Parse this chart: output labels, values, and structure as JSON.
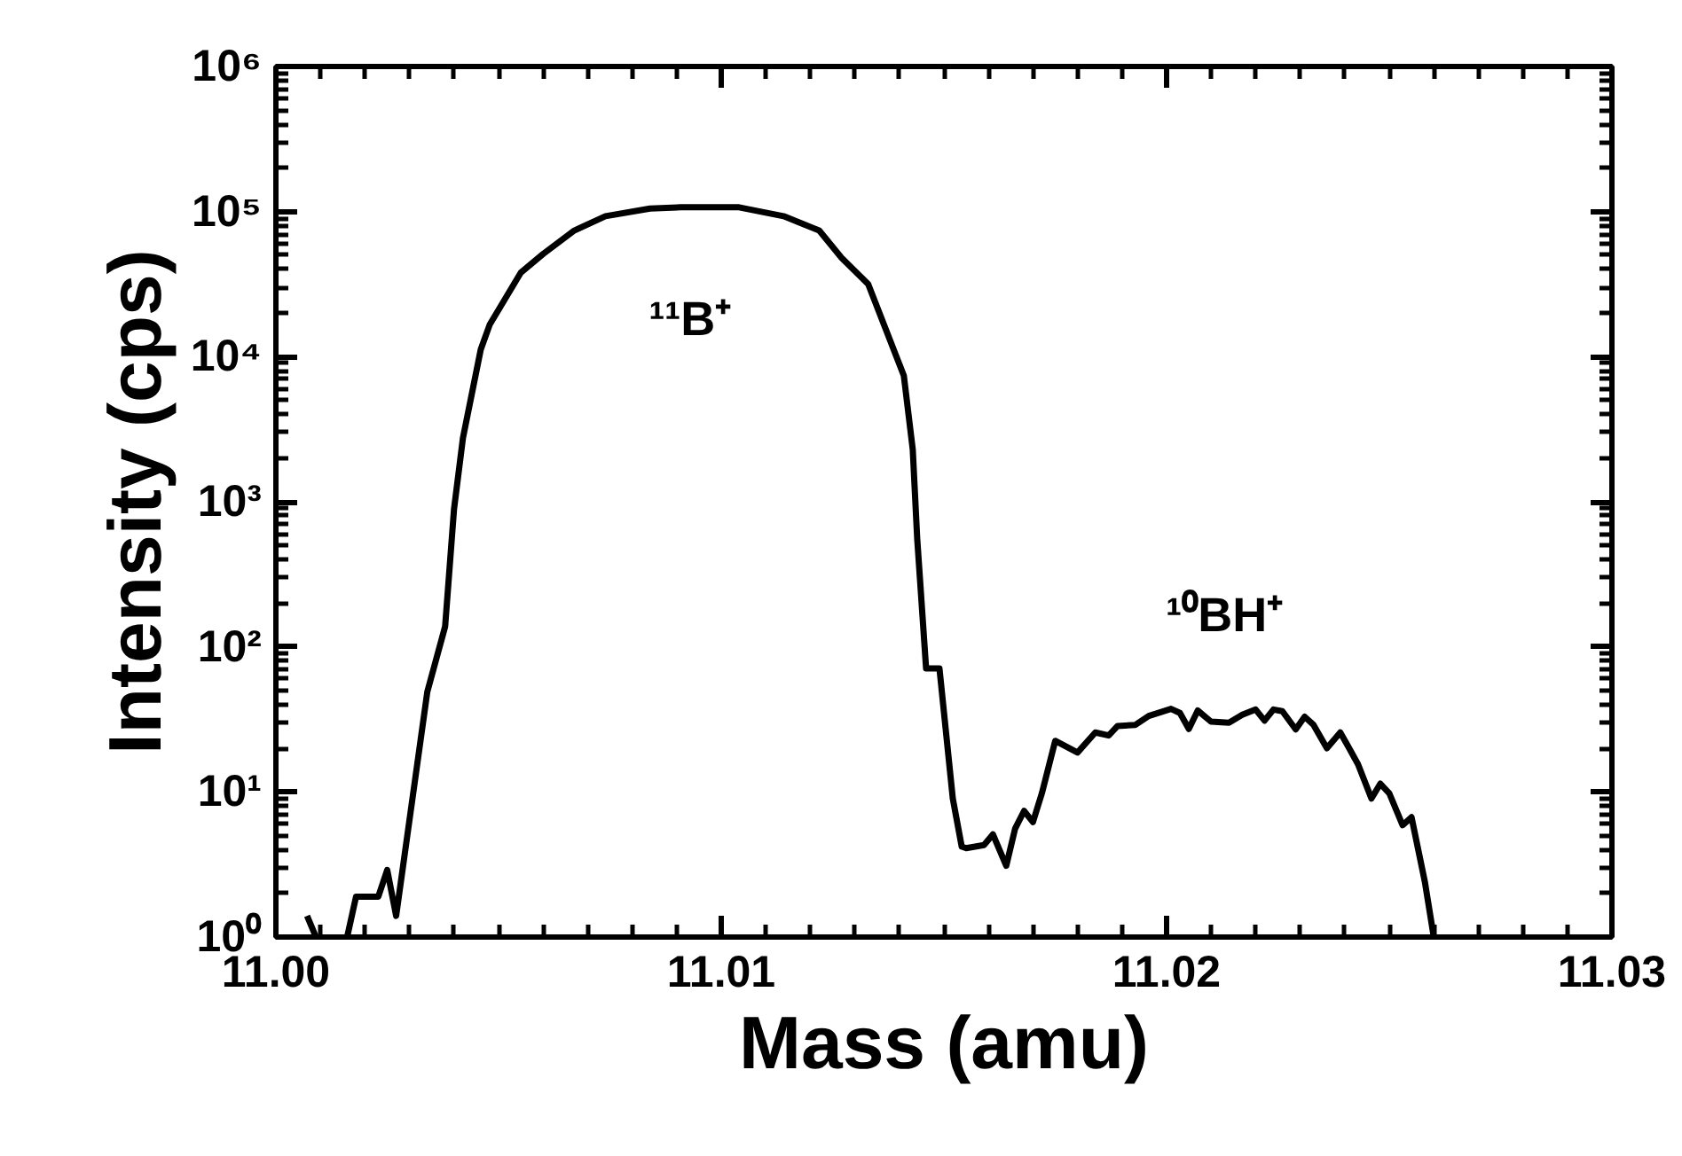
{
  "chart_data": {
    "type": "line",
    "xlabel": "Mass (amu)",
    "ylabel": "Intensity (cps)",
    "log": "y",
    "grid": false,
    "marker": "none",
    "line_style": "solid",
    "xlim": [
      11.0,
      11.03
    ],
    "ylim": [
      1,
      1000000
    ],
    "xticks": [
      {
        "value": 11.0,
        "label": "11.00"
      },
      {
        "value": 11.01,
        "label": "11.01"
      },
      {
        "value": 11.02,
        "label": "11.02"
      },
      {
        "value": 11.03,
        "label": "11.03"
      }
    ],
    "yticks": [
      {
        "value": 1,
        "label": "10⁰"
      },
      {
        "value": 10,
        "label": "10¹"
      },
      {
        "value": 100,
        "label": "10²"
      },
      {
        "value": 1000,
        "label": "10³"
      },
      {
        "value": 10000,
        "label": "10⁴"
      },
      {
        "value": 100000,
        "label": "10⁵"
      },
      {
        "value": 1000000,
        "label": "10⁶"
      }
    ],
    "annotations": [
      "¹¹B⁺",
      "¹⁰BH⁺"
    ],
    "series": [
      {
        "color": "#000000",
        "x": [
          11.0007,
          11.0009,
          11.0012,
          11.0016,
          11.0018,
          11.0023,
          11.0025,
          11.0027,
          11.0034,
          11.0038,
          11.004,
          11.0042,
          11.0046,
          11.0048,
          11.0055,
          11.006,
          11.0067,
          11.0074,
          11.0084,
          11.0091,
          11.0104,
          11.0114,
          11.0122,
          11.0127,
          11.0133,
          11.0141,
          11.0143,
          11.0144,
          11.0146,
          11.0149,
          11.0152,
          11.0154,
          11.0155,
          11.0159,
          11.0161,
          11.0164,
          11.0166,
          11.0168,
          11.017,
          11.0172,
          11.0175,
          11.018,
          11.0184,
          11.0187,
          11.0189,
          11.0193,
          11.0196,
          11.0201,
          11.0203,
          11.0205,
          11.0207,
          11.021,
          11.0214,
          11.0217,
          11.022,
          11.0222,
          11.0224,
          11.0226,
          11.0229,
          11.0231,
          11.0233,
          11.0236,
          11.0239,
          11.0241,
          11.0243,
          11.0246,
          11.0248,
          11.025,
          11.0253,
          11.0255,
          11.0258,
          11.026
        ],
        "values": [
          1.4,
          1,
          null,
          1,
          1.9,
          1.9,
          2.9,
          1.4,
          49,
          138,
          890,
          2750,
          11200,
          16600,
          38000,
          51000,
          74000,
          93000,
          105000,
          107000,
          107000,
          93000,
          74000,
          48000,
          31600,
          7400,
          2300,
          560,
          71,
          71,
          9,
          4.2,
          4.1,
          4.3,
          5.1,
          3.1,
          5.6,
          7.4,
          6.2,
          9.8,
          22.5,
          18.7,
          25.7,
          24.5,
          28.5,
          29,
          33.4,
          37.4,
          35,
          27.2,
          36.4,
          30.5,
          30,
          34,
          37,
          31,
          37,
          36,
          27,
          33,
          29,
          20,
          25.7,
          20,
          15.5,
          9,
          11.4,
          9.8,
          5.9,
          6.7,
          2.4,
          1
        ]
      }
    ]
  }
}
